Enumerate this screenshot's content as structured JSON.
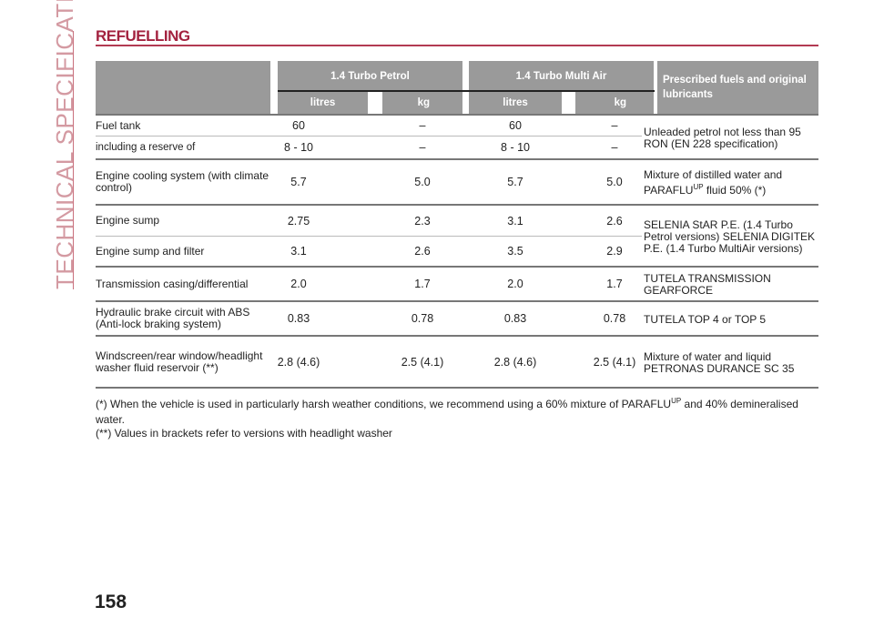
{
  "sidebar": {
    "section": "TECHNICAL SPECIFICATIONS"
  },
  "title": "REFUELLING",
  "table": {
    "groups": [
      "1.4 Turbo Petrol",
      "1.4 Turbo Multi Air"
    ],
    "subheaders": [
      "litres",
      "kg",
      "litres",
      "kg"
    ],
    "lubricants_header": "Prescribed fuels and original lubricants",
    "rows": [
      {
        "label": "Fuel tank",
        "values": [
          "60",
          "–",
          "60",
          "–"
        ]
      },
      {
        "label": "including a reserve of",
        "values": [
          "8 - 10",
          "–",
          "8 - 10",
          "–"
        ]
      },
      {
        "label": "Engine cooling system (with climate control)",
        "values": [
          "5.7",
          "5.0",
          "5.7",
          "5.0"
        ]
      },
      {
        "label": "Engine sump",
        "values": [
          "2.75",
          "2.3",
          "3.1",
          "2.6"
        ]
      },
      {
        "label": "Engine sump and filter",
        "values": [
          "3.1",
          "2.6",
          "3.5",
          "2.9"
        ]
      },
      {
        "label": "Transmission casing/differential",
        "values": [
          "2.0",
          "1.7",
          "2.0",
          "1.7"
        ]
      },
      {
        "label": "Hydraulic brake circuit with ABS (Anti-lock braking system)",
        "values": [
          "0.83",
          "0.78",
          "0.83",
          "0.78"
        ]
      },
      {
        "label": "Windscreen/rear window/headlight washer fluid reservoir (**)",
        "values": [
          "2.8 (4.6)",
          "2.5 (4.1)",
          "2.8 (4.6)",
          "2.5 (4.1)"
        ]
      }
    ],
    "lubricants": {
      "fuel": "Unleaded petrol not less than 95 RON (EN 228 specification)",
      "coolant_pre": "Mixture of distilled water and PARAFLU",
      "coolant_sup": "UP",
      "coolant_post": " fluid 50% (*)",
      "oil": "SELENIA StAR P.E. (1.4 Turbo Petrol versions) SELENIA DIGITEK P.E. (1.4 Turbo MultiAir versions)",
      "transmission": "TUTELA TRANSMISSION GEARFORCE",
      "brake": "TUTELA TOP 4 or TOP 5",
      "washer": "Mixture of water and liquid PETRONAS DURANCE SC 35"
    }
  },
  "footnotes": {
    "f1_pre": "(*) When the vehicle is used in particularly harsh weather conditions, we recommend using a 60% mixture of PARAFLU",
    "f1_sup": "UP",
    "f1_post": " and 40% demineralised water.",
    "f2": "(**) Values in brackets refer to versions with headlight washer"
  },
  "page_number": "158",
  "colors": {
    "accent": "#a3223f",
    "header_gray": "#9a9a9a",
    "sidebar_text": "#d49aa2"
  }
}
